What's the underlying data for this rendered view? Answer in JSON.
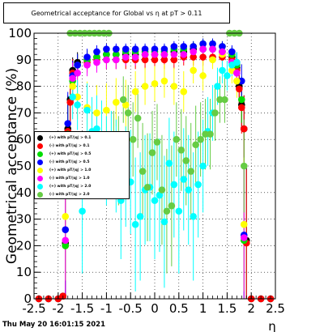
{
  "title": "Geometrical acceptance for Global vs   η at pT > 0.11",
  "timestamp": "Thu May 20 16:01:15 2021",
  "chart_data": {
    "type": "scatter",
    "xlabel": "η",
    "ylabel": "Geometrical acceptance (%)",
    "xlim": [
      -2.5,
      2.5
    ],
    "ylim": [
      0,
      100
    ],
    "x_ticks": [
      "-2.5",
      "-2",
      "-1.5",
      "-1",
      "-0.5",
      "0",
      "0.5",
      "1",
      "1.5",
      "2",
      "2.5"
    ],
    "y_ticks": [
      "0",
      "10",
      "20",
      "30",
      "40",
      "50",
      "60",
      "70",
      "80",
      "90",
      "100"
    ],
    "grid": true,
    "legend_position": "left",
    "series": [
      {
        "name": "(+) with pT/|q| > 0.1",
        "color": "#000000",
        "x": [
          -2.4,
          -2.2,
          -2.0,
          -1.9,
          -1.85,
          -1.8,
          -1.75,
          -1.7,
          -1.6,
          -1.4,
          -1.2,
          -1.0,
          -0.8,
          -0.6,
          -0.4,
          -0.2,
          0.0,
          0.2,
          0.4,
          0.6,
          0.8,
          1.0,
          1.2,
          1.4,
          1.6,
          1.7,
          1.75,
          1.8,
          1.85,
          1.9,
          2.0,
          2.2,
          2.4
        ],
        "y": [
          0,
          0,
          0,
          1,
          21,
          64,
          75,
          86,
          89,
          90,
          91,
          92,
          92,
          92,
          92,
          92,
          92,
          92,
          93,
          93,
          94,
          94,
          94,
          93,
          91,
          87,
          80,
          73,
          64,
          22,
          0,
          0,
          0
        ]
      },
      {
        "name": "(-) with pT/|q| > 0.1",
        "color": "#ff0000",
        "x": [
          -2.4,
          -2.2,
          -2.0,
          -1.9,
          -1.85,
          -1.8,
          -1.75,
          -1.7,
          -1.6,
          -1.4,
          -1.2,
          -1.0,
          -0.8,
          -0.6,
          -0.4,
          -0.2,
          0.0,
          0.2,
          0.4,
          0.6,
          0.8,
          1.0,
          1.2,
          1.4,
          1.6,
          1.7,
          1.75,
          1.8,
          1.85,
          1.9,
          2.0,
          2.2,
          2.4
        ],
        "y": [
          0,
          0,
          0,
          1,
          20,
          63,
          74,
          85,
          88,
          89,
          90,
          90,
          90,
          90,
          90,
          90,
          90,
          90,
          90,
          91,
          91,
          91,
          91,
          91,
          90,
          86,
          79,
          72,
          64,
          21,
          0,
          0,
          0
        ]
      },
      {
        "name": "(+) with pT/|q| > 0.5",
        "color": "#00dd00",
        "x": [
          -1.85,
          -1.8,
          -1.7,
          -1.6,
          -1.4,
          -1.2,
          -1.0,
          -0.8,
          -0.6,
          -0.4,
          -0.2,
          0.0,
          0.2,
          0.4,
          0.6,
          0.8,
          1.0,
          1.2,
          1.4,
          1.6,
          1.7,
          1.8,
          1.85
        ],
        "y": [
          20,
          62,
          82,
          88,
          90,
          91,
          92,
          92,
          93,
          93,
          93,
          93,
          93,
          94,
          94,
          95,
          96,
          96,
          95,
          92,
          88,
          75,
          22
        ]
      },
      {
        "name": "(-) with pT/|q| > 0.5",
        "color": "#0000ff",
        "x": [
          -1.85,
          -1.8,
          -1.7,
          -1.6,
          -1.4,
          -1.2,
          -1.0,
          -0.8,
          -0.6,
          -0.4,
          -0.2,
          0.0,
          0.2,
          0.4,
          0.6,
          0.8,
          1.0,
          1.2,
          1.4,
          1.6,
          1.7,
          1.8,
          1.85
        ],
        "y": [
          26,
          66,
          84,
          88,
          91,
          93,
          94,
          94,
          94,
          94,
          94,
          94,
          94,
          95,
          95,
          95,
          96,
          96,
          95,
          93,
          89,
          82,
          24
        ]
      },
      {
        "name": "(+) with pT/|q| > 1.0",
        "color": "#ffff00",
        "x": [
          -1.85,
          -1.7,
          -1.6,
          -1.4,
          -1.2,
          -1.0,
          -0.8,
          -0.6,
          -0.4,
          -0.2,
          0.0,
          0.2,
          0.4,
          0.6,
          0.8,
          1.0,
          1.2,
          1.4,
          1.6,
          1.7,
          1.85
        ],
        "y": [
          31,
          80,
          76,
          72,
          70,
          71,
          74,
          73,
          78,
          80,
          81,
          82,
          80,
          78,
          86,
          84,
          90,
          92,
          86,
          82,
          28
        ]
      },
      {
        "name": "(-) with pT/|q| > 1.0",
        "color": "#ff00ff",
        "x": [
          -1.85,
          -1.7,
          -1.6,
          -1.4,
          -1.2,
          -1.0,
          -0.8,
          -0.6,
          -0.4,
          -0.2,
          0.0,
          0.2,
          0.4,
          0.6,
          0.8,
          1.0,
          1.2,
          1.4,
          1.6,
          1.7,
          1.85
        ],
        "y": [
          22,
          83,
          85,
          88,
          89,
          90,
          90,
          91,
          91,
          92,
          92,
          92,
          92,
          92,
          93,
          94,
          94,
          93,
          89,
          85,
          23
        ]
      },
      {
        "name": "(+) with pT/|q| > 2.0",
        "color": "#00ffff",
        "x": [
          -1.7,
          -1.6,
          -1.5,
          -1.4,
          -1.3,
          -1.2,
          -1.1,
          -1.0,
          -0.9,
          -0.8,
          -0.7,
          -0.6,
          -0.5,
          -0.4,
          -0.3,
          -0.2,
          -0.1,
          0.0,
          0.1,
          0.2,
          0.3,
          0.4,
          0.5,
          0.6,
          0.7,
          0.8,
          0.9,
          1.0,
          1.1,
          1.2,
          1.3,
          1.4,
          1.5,
          1.6,
          1.7
        ],
        "y": [
          76,
          73,
          33,
          71,
          63,
          64,
          61,
          52,
          55,
          50,
          37,
          46,
          44,
          28,
          31,
          41,
          42,
          37,
          39,
          29,
          51,
          43,
          33,
          45,
          41,
          31,
          43,
          50,
          63,
          70,
          80,
          86,
          84,
          88,
          89
        ]
      },
      {
        "name": "(-) with pT/|q| > 2.0",
        "color": "#66cc44",
        "x": [
          -1.75,
          -1.65,
          -1.55,
          -1.45,
          -1.35,
          -1.25,
          -1.15,
          -1.05,
          -0.95,
          -0.85,
          -0.75,
          -0.65,
          -0.55,
          -0.45,
          -0.35,
          -0.25,
          -0.15,
          -0.05,
          0.05,
          0.15,
          0.25,
          0.35,
          0.45,
          0.55,
          0.65,
          0.75,
          0.85,
          0.95,
          1.05,
          1.15,
          1.25,
          1.35,
          1.45,
          1.55,
          1.65,
          1.75,
          1.85
        ],
        "y": [
          100,
          100,
          100,
          100,
          100,
          100,
          100,
          100,
          100,
          55,
          52,
          75,
          70,
          60,
          68,
          48,
          42,
          55,
          59,
          41,
          33,
          35,
          60,
          56,
          52,
          48,
          58,
          60,
          62,
          62,
          70,
          75,
          75,
          100,
          100,
          100,
          50
        ]
      }
    ]
  }
}
